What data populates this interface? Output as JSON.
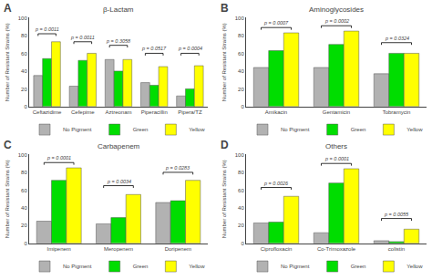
{
  "chart_data": [
    {
      "type": "bar",
      "title": "β-Lactam",
      "label": "A",
      "categories": [
        "Ceftazidime",
        "Cefepime",
        "Aztreonam",
        "Piperacillin",
        "Pipera/TZ"
      ],
      "series": [
        {
          "name": "No Pigment",
          "color": "#b2b2b2",
          "values": [
            35,
            23,
            53,
            27,
            12
          ]
        },
        {
          "name": "Green",
          "color": "#00dd00",
          "values": [
            54,
            52,
            40,
            24,
            20
          ]
        },
        {
          "name": "Yellow",
          "color": "#ffff00",
          "values": [
            73,
            60,
            53,
            45,
            46
          ]
        }
      ],
      "ylabel": "Number of Resistant Strains (%)",
      "ylim": [
        0,
        100
      ],
      "yticks": [
        0,
        20,
        40,
        60,
        80,
        100
      ],
      "grid": false,
      "legend": "bottom",
      "brackets": [
        {
          "category": "Ceftazidime",
          "from": "No Pigment",
          "to": "Yellow",
          "y": 82,
          "text": "p = 0.0011"
        },
        {
          "category": "Cefepime",
          "from": "No Pigment",
          "to": "Yellow",
          "y": 73,
          "text": "p = 0.0011"
        },
        {
          "category": "Aztreonam",
          "from": "No Pigment",
          "to": "Yellow",
          "y": 69,
          "text": "p = 0.3058"
        },
        {
          "category": "Piperacillin",
          "from": "No Pigment",
          "to": "Yellow",
          "y": 60,
          "text": "p = 0.0517"
        },
        {
          "category": "Pipera/TZ",
          "from": "No Pigment",
          "to": "Yellow",
          "y": 60,
          "text": "p = 0.0004"
        }
      ]
    },
    {
      "type": "bar",
      "title": "Aminoglycosides",
      "label": "B",
      "categories": [
        "Amikacin",
        "Gentamicin",
        "Tobramycin"
      ],
      "series": [
        {
          "name": "No Pigment",
          "color": "#b2b2b2",
          "values": [
            44,
            44,
            37
          ]
        },
        {
          "name": "Green",
          "color": "#00dd00",
          "values": [
            63,
            70,
            60
          ]
        },
        {
          "name": "Yellow",
          "color": "#ffff00",
          "values": [
            83,
            85,
            60
          ]
        }
      ],
      "ylabel": "Number of Resistant Strains (%)",
      "ylim": [
        0,
        100
      ],
      "yticks": [
        0,
        20,
        40,
        60,
        80,
        100
      ],
      "grid": false,
      "legend": "bottom",
      "brackets": [
        {
          "category": "Amikacin",
          "from": "No Pigment",
          "to": "Yellow",
          "y": 89,
          "text": "p = 0.0007"
        },
        {
          "category": "Gentamicin",
          "from": "No Pigment",
          "to": "Yellow",
          "y": 91,
          "text": "p = 0.0002"
        },
        {
          "category": "Tobramycin",
          "from": "No Pigment",
          "to": "Yellow",
          "y": 72,
          "text": "p = 0.0324"
        }
      ]
    },
    {
      "type": "bar",
      "title": "Carbapenem",
      "label": "C",
      "categories": [
        "Imipenem",
        "Meropenem",
        "Doripenem"
      ],
      "series": [
        {
          "name": "No Pigment",
          "color": "#b2b2b2",
          "values": [
            25,
            22,
            46
          ]
        },
        {
          "name": "Green",
          "color": "#00dd00",
          "values": [
            71,
            29,
            48
          ]
        },
        {
          "name": "Yellow",
          "color": "#ffff00",
          "values": [
            85,
            55,
            71
          ]
        }
      ],
      "ylabel": "Number of Resistant Strains (%)",
      "ylim": [
        0,
        100
      ],
      "yticks": [
        0,
        20,
        40,
        60,
        80,
        100
      ],
      "grid": false,
      "legend": "bottom",
      "brackets": [
        {
          "category": "Imipenem",
          "from": "No Pigment",
          "to": "Yellow",
          "y": 91,
          "text": "p = 0.0001"
        },
        {
          "category": "Meropenem",
          "from": "No Pigment",
          "to": "Yellow",
          "y": 65,
          "text": "p = 0.0034"
        },
        {
          "category": "Doripenem",
          "from": "No Pigment",
          "to": "Yellow",
          "y": 80,
          "text": "p = 0.0283"
        }
      ]
    },
    {
      "type": "bar",
      "title": "Others",
      "label": "D",
      "categories": [
        "Ciprofloxacin",
        "Co-Trimoxazole",
        "colistin"
      ],
      "series": [
        {
          "name": "No Pigment",
          "color": "#b2b2b2",
          "values": [
            23,
            12,
            3
          ]
        },
        {
          "name": "Green",
          "color": "#00dd00",
          "values": [
            24,
            68,
            2
          ]
        },
        {
          "name": "Yellow",
          "color": "#ffff00",
          "values": [
            53,
            84,
            16
          ]
        }
      ],
      "ylabel": "Number of Resistant Strains (%)",
      "ylim": [
        0,
        100
      ],
      "yticks": [
        0,
        20,
        40,
        60,
        80,
        100
      ],
      "grid": false,
      "legend": "bottom",
      "brackets": [
        {
          "category": "Ciprofloxacin",
          "from": "No Pigment",
          "to": "Yellow",
          "y": 63,
          "text": "p = 0.0026"
        },
        {
          "category": "Co-Trimoxazole",
          "from": "No Pigment",
          "to": "Yellow",
          "y": 90,
          "text": "p = 0.0001"
        },
        {
          "category": "colistin",
          "from": "No Pigment",
          "to": "Yellow",
          "y": 28,
          "text": "p = 0.0055"
        }
      ]
    }
  ]
}
